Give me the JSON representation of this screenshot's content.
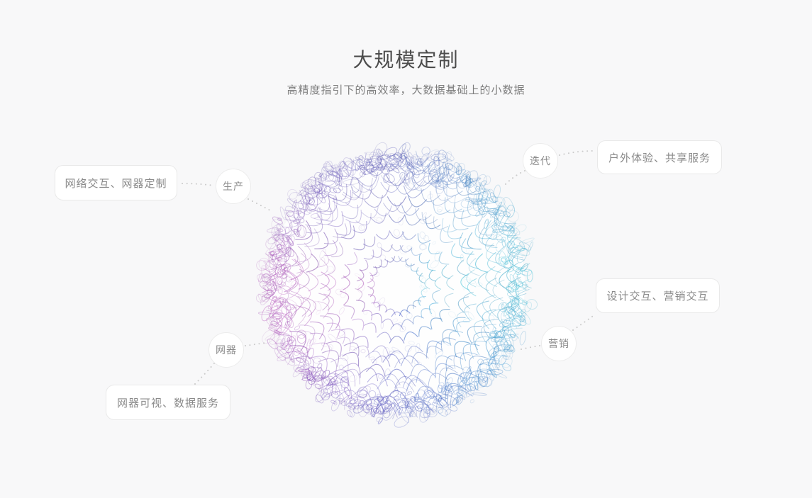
{
  "header": {
    "title": "大规模定制",
    "subtitle": "高精度指引下的高效率，大数据基础上的小数据"
  },
  "diagram": {
    "circles": [
      {
        "id": "production",
        "label": "生产"
      },
      {
        "id": "iteration",
        "label": "迭代"
      },
      {
        "id": "marketing",
        "label": "营销"
      },
      {
        "id": "net-device",
        "label": "网器"
      }
    ],
    "boxes": [
      {
        "id": "production-box",
        "label": "网络交互、网器定制"
      },
      {
        "id": "iteration-box",
        "label": "户外体验、共享服务"
      },
      {
        "id": "marketing-box",
        "label": "设计交互、营销交互"
      },
      {
        "id": "net-device-box",
        "label": "网器可视、数据服务"
      }
    ]
  },
  "colors": {
    "page_background": "#f8f8f9",
    "title_text": "#4c4c4c",
    "subtitle_text": "#7d7d7d",
    "label_text": "#8a8a8a",
    "node_border": "#e9e9e9",
    "node_background": "#ffffff",
    "connector_dot": "#cbcbcb",
    "sphere_palette": [
      [
        0,
        "#48cede"
      ],
      [
        45,
        "#52a8d8"
      ],
      [
        90,
        "#6468c0"
      ],
      [
        135,
        "#7d62c2"
      ],
      [
        170,
        "#b65cbe"
      ],
      [
        200,
        "#c263c4"
      ],
      [
        230,
        "#8e58c2"
      ],
      [
        270,
        "#555fc8"
      ],
      [
        315,
        "#4b9ad8"
      ],
      [
        360,
        "#48cede"
      ]
    ]
  }
}
